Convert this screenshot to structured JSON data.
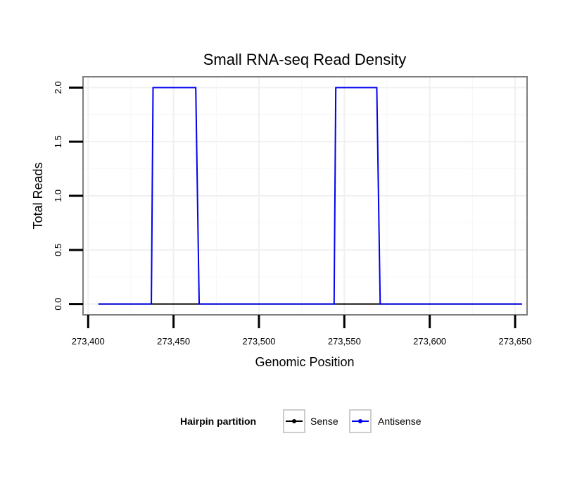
{
  "chart_data": {
    "type": "line",
    "title": "Small RNA-seq Read Density",
    "xlabel": "Genomic Position",
    "ylabel": "Total Reads",
    "xlim": [
      273397,
      273657
    ],
    "ylim": [
      -0.1,
      2.1
    ],
    "x_ticks": [
      273400,
      273450,
      273500,
      273550,
      273600,
      273650
    ],
    "x_tick_labels": [
      "273,400",
      "273,450",
      "273,500",
      "273,550",
      "273,600",
      "273,650"
    ],
    "y_ticks": [
      0,
      0.5,
      1,
      1.5,
      2
    ],
    "y_tick_labels": [
      "0.0",
      "0.5",
      "1.0",
      "1.5",
      "2.0"
    ],
    "grid": true,
    "legend": {
      "title": "Hairpin partition",
      "position": "bottom",
      "entries": [
        "Sense",
        "Antisense"
      ]
    },
    "series": [
      {
        "name": "Sense",
        "color": "#000000",
        "x": [
          273406,
          273654
        ],
        "y": [
          0,
          0
        ]
      },
      {
        "name": "Antisense",
        "color": "#0000ee",
        "x": [
          273406,
          273437,
          273438,
          273463,
          273465,
          273544,
          273545,
          273569,
          273571,
          273654
        ],
        "y": [
          0,
          0,
          2,
          2,
          0,
          0,
          2,
          2,
          0,
          0
        ]
      }
    ]
  }
}
